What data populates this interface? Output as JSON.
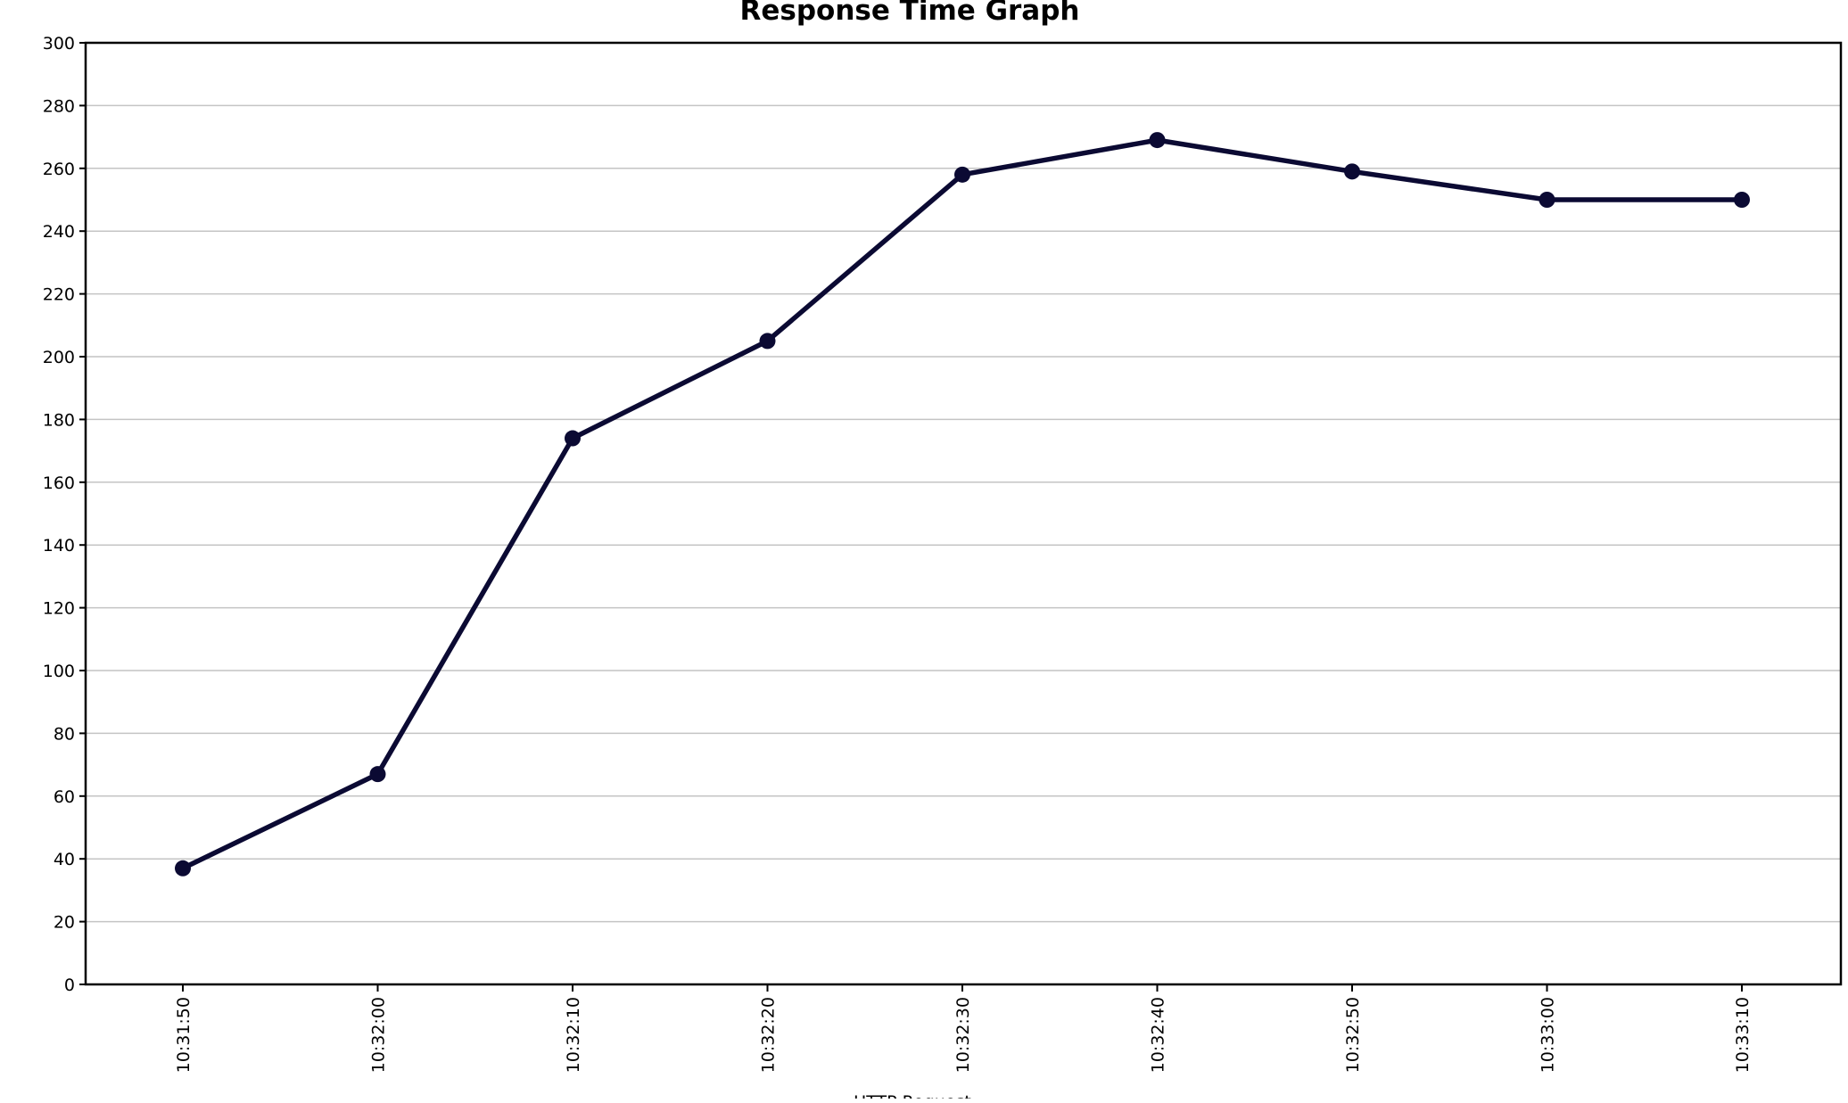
{
  "chart_data": {
    "type": "line",
    "title": "Response Time Graph",
    "xlabel": "",
    "ylabel": "",
    "ylim": [
      0,
      300
    ],
    "yticks": [
      0,
      20,
      40,
      60,
      80,
      100,
      120,
      140,
      160,
      180,
      200,
      220,
      240,
      260,
      280,
      300
    ],
    "categories": [
      "10:31:50",
      "10:32:00",
      "10:32:10",
      "10:32:20",
      "10:32:30",
      "10:32:40",
      "10:32:50",
      "10:33:00",
      "10:33:10"
    ],
    "grid": true,
    "legend_placement": "bottom",
    "series": [
      {
        "name": "HTTP Request",
        "color": "#0b0a33",
        "values": [
          37,
          67,
          174,
          205,
          258,
          269,
          259,
          250,
          250
        ]
      }
    ]
  }
}
